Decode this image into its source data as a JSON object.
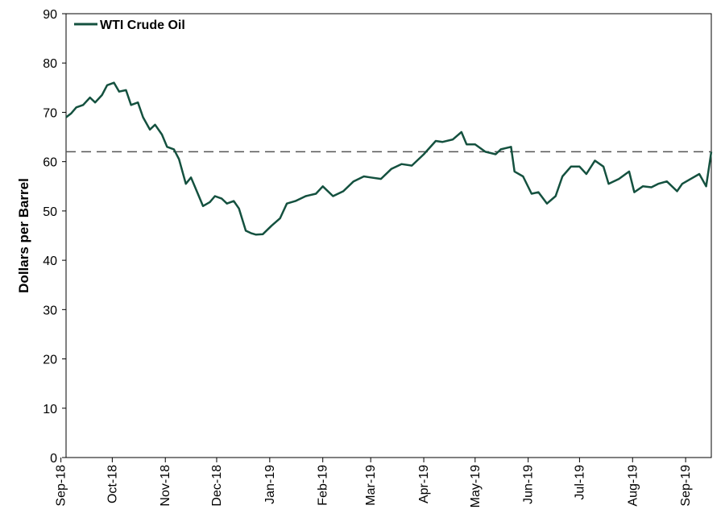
{
  "chart_data": {
    "type": "line",
    "ylabel": "Dollars per Barrel",
    "ylim": [
      0,
      90
    ],
    "yticks": [
      0,
      10,
      20,
      30,
      40,
      50,
      60,
      70,
      80,
      90
    ],
    "x_tick_labels": [
      "Sep-18",
      "Oct-18",
      "Nov-18",
      "Dec-18",
      "Jan-19",
      "Feb-19",
      "Mar-19",
      "Apr-19",
      "May-19",
      "Jun-19",
      "Jul-19",
      "Aug-19",
      "Sep-19"
    ],
    "x_range": [
      "2018-09-04",
      "2019-09-16"
    ],
    "grid": false,
    "legend": {
      "placement": "top-left",
      "entries": [
        "WTI Crude Oil"
      ]
    },
    "colors": {
      "series": "#14513f",
      "reference": "#555555"
    },
    "reference_line": {
      "y": 62,
      "style": "dashed"
    },
    "series": [
      {
        "name": "WTI Crude Oil",
        "x": [
          "2018-09-04",
          "2018-09-07",
          "2018-09-10",
          "2018-09-14",
          "2018-09-18",
          "2018-09-21",
          "2018-09-25",
          "2018-09-28",
          "2018-10-02",
          "2018-10-05",
          "2018-10-09",
          "2018-10-12",
          "2018-10-16",
          "2018-10-19",
          "2018-10-23",
          "2018-10-26",
          "2018-10-30",
          "2018-11-02",
          "2018-11-06",
          "2018-11-09",
          "2018-11-13",
          "2018-11-16",
          "2018-11-20",
          "2018-11-23",
          "2018-11-27",
          "2018-11-30",
          "2018-12-04",
          "2018-12-07",
          "2018-12-11",
          "2018-12-14",
          "2018-12-18",
          "2018-12-21",
          "2018-12-24",
          "2018-12-28",
          "2019-01-02",
          "2019-01-07",
          "2019-01-11",
          "2019-01-16",
          "2019-01-22",
          "2019-01-28",
          "2019-02-01",
          "2019-02-07",
          "2019-02-13",
          "2019-02-19",
          "2019-02-25",
          "2019-03-01",
          "2019-03-07",
          "2019-03-13",
          "2019-03-19",
          "2019-03-25",
          "2019-04-01",
          "2019-04-08",
          "2019-04-12",
          "2019-04-18",
          "2019-04-23",
          "2019-04-26",
          "2019-05-01",
          "2019-05-07",
          "2019-05-13",
          "2019-05-16",
          "2019-05-22",
          "2019-05-24",
          "2019-05-29",
          "2019-06-03",
          "2019-06-07",
          "2019-06-12",
          "2019-06-17",
          "2019-06-21",
          "2019-06-26",
          "2019-07-01",
          "2019-07-05",
          "2019-07-10",
          "2019-07-15",
          "2019-07-18",
          "2019-07-24",
          "2019-07-30",
          "2019-08-02",
          "2019-08-07",
          "2019-08-12",
          "2019-08-16",
          "2019-08-21",
          "2019-08-27",
          "2019-08-30",
          "2019-09-04",
          "2019-09-09",
          "2019-09-13",
          "2019-09-16"
        ],
        "values": [
          69.0,
          69.8,
          71.0,
          71.5,
          73.0,
          72.0,
          73.5,
          75.5,
          76.0,
          74.2,
          74.5,
          71.5,
          72.0,
          69.0,
          66.5,
          67.5,
          65.5,
          63.0,
          62.5,
          60.5,
          55.5,
          56.8,
          53.5,
          51.0,
          51.8,
          53.0,
          52.5,
          51.5,
          52.0,
          50.5,
          46.0,
          45.5,
          45.2,
          45.3,
          47.0,
          48.5,
          51.5,
          52.0,
          53.0,
          53.5,
          55.0,
          53.0,
          54.0,
          56.0,
          57.0,
          56.8,
          56.5,
          58.5,
          59.5,
          59.2,
          61.5,
          64.2,
          64.0,
          64.5,
          66.0,
          63.5,
          63.5,
          62.0,
          61.5,
          62.5,
          63.0,
          58.0,
          57.0,
          53.5,
          53.8,
          51.5,
          53.0,
          57.0,
          59.0,
          59.0,
          57.5,
          60.2,
          59.0,
          55.5,
          56.5,
          58.0,
          53.8,
          55.0,
          54.8,
          55.5,
          56.0,
          54.0,
          55.5,
          56.5,
          57.5,
          55.0,
          62.0
        ]
      }
    ]
  }
}
